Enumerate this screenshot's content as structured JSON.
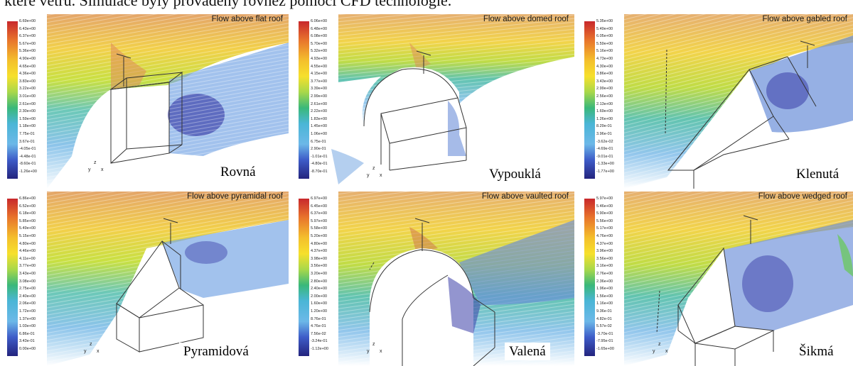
{
  "caption_fragment": "které větru. Simulace byly prováděny rovněž pomocí CFD technologie.",
  "panels": [
    {
      "title": "Flow above flat roof",
      "label": "Rovná",
      "ticks": [
        "6.69e+00",
        "6.43e+00",
        "6.37e+00",
        "5.67e+00",
        "5.36e+00",
        "4.90e+00",
        "4.65e+00",
        "4.36e+00",
        "3.83e+00",
        "3.22e+00",
        "3.01e+00",
        "2.61e+00",
        "2.30e+00",
        "1.59e+00",
        "1.18e+00",
        "7.75e-01",
        "3.67e-01",
        "-4.05e-01",
        "-4.48e-01",
        "-8.60e-01",
        "-1.26e+00"
      ]
    },
    {
      "title": "Flow above domed roof",
      "label": "Vypouklá",
      "ticks": [
        "6.06e+00",
        "6.48e+00",
        "6.08e+00",
        "5.70e+00",
        "5.32e+00",
        "4.93e+00",
        "4.55e+00",
        "4.15e+00",
        "3.77e+00",
        "3.39e+00",
        "2.99e+00",
        "2.61e+00",
        "2.22e+00",
        "1.83e+00",
        "1.45e+00",
        "1.06e+00",
        "6.75e-01",
        "2.90e-01",
        "-1.01e-01",
        "-4.80e-01",
        "-8.70e-01"
      ]
    },
    {
      "title": "Flow above gabled roof",
      "label": "Klenutá",
      "ticks": [
        "5.35e+00",
        "5.49e+00",
        "6.05e+00",
        "5.59e+00",
        "5.16e+00",
        "4.73e+00",
        "4.30e+00",
        "3.86e+00",
        "3.43e+00",
        "2.99e+00",
        "2.56e+00",
        "2.13e+00",
        "1.69e+00",
        "1.26e+00",
        "8.29e-01",
        "3.96e-01",
        "-3.62e-02",
        "-4.69e-01",
        "-9.01e-01",
        "-1.33e+00",
        "-1.77e+00"
      ]
    },
    {
      "title": "Flow above pyramidal roof",
      "label": "Pyramidová",
      "ticks": [
        "6.86e+00",
        "6.52e+00",
        "6.18e+00",
        "5.85e+00",
        "5.49e+00",
        "5.15e+00",
        "4.80e+00",
        "4.46e+00",
        "4.11e+00",
        "3.77e+00",
        "3.43e+00",
        "3.08e+00",
        "2.75e+00",
        "2.40e+00",
        "2.06e+00",
        "1.72e+00",
        "1.37e+00",
        "1.03e+00",
        "6.86e-01",
        "3.43e-01",
        "0.00e+00"
      ]
    },
    {
      "title": "Flow above vaulted roof",
      "label": "Valená",
      "ticks": [
        "6.97e+00",
        "6.45e+00",
        "6.37e+00",
        "5.97e+00",
        "5.58e+00",
        "5.20e+00",
        "4.80e+00",
        "4.37e+00",
        "3.98e+00",
        "3.56e+00",
        "3.20e+00",
        "2.80e+00",
        "2.40e+00",
        "2.00e+00",
        "1.60e+00",
        "1.20e+00",
        "8.76e-01",
        "4.76e-01",
        "7.56e-02",
        "-3.24e-01",
        "-1.12e+00"
      ]
    },
    {
      "title": "Flow above wedged roof",
      "label": "Šikmá",
      "ticks": [
        "5.97e+00",
        "5.46e+00",
        "5.90e+00",
        "5.56e+00",
        "5.17e+00",
        "4.76e+00",
        "4.37e+00",
        "3.96e+00",
        "3.56e+00",
        "3.16e+00",
        "2.76e+00",
        "2.36e+00",
        "1.96e+00",
        "1.56e+00",
        "1.16e+00",
        "9.36e-01",
        "4.82e-01",
        "5.57e-02",
        "-3.70e-01",
        "-7.95e-01",
        "-1.65e+00"
      ]
    }
  ],
  "axis_labels": {
    "x": "x",
    "y": "y",
    "z": "z"
  },
  "colorbar_colors": [
    "#c8282c",
    "#d8482c",
    "#e8742c",
    "#f09a2c",
    "#f4c02c",
    "#f6e02c",
    "#d8e83a",
    "#a8d84a",
    "#6cc864",
    "#3ab87a",
    "#36b0a8",
    "#4ab6d6",
    "#6cb8e8",
    "#5a8ede",
    "#3e5cc8",
    "#2e3ca6",
    "#24247e"
  ]
}
